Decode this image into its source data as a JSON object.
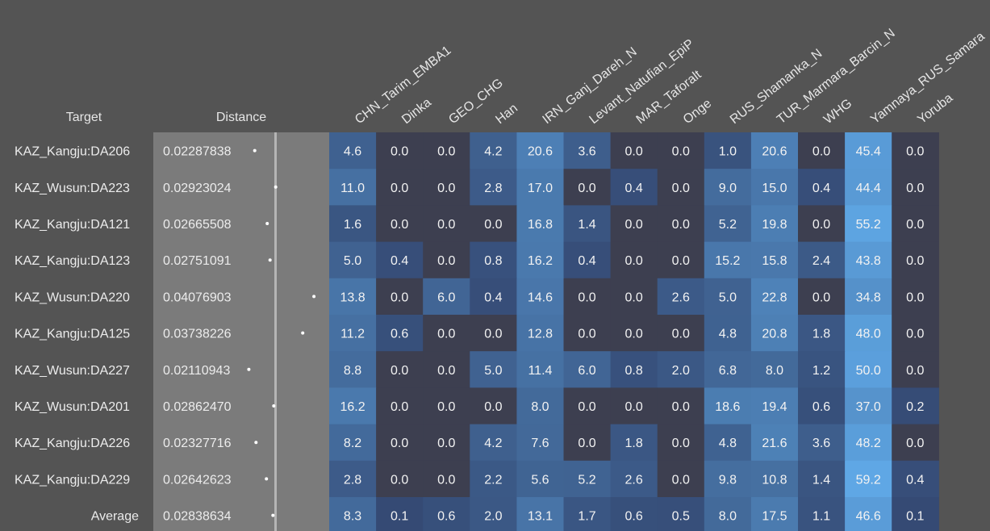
{
  "chart_data": {
    "type": "heatmap",
    "header": {
      "target": "Target",
      "distance": "Distance"
    },
    "columns": [
      "CHN_Tarim_EMBA1",
      "Dinka",
      "GEO_CHG",
      "Han",
      "IRN_Ganj_Dareh_N",
      "Levant_Natufian_EpiP",
      "MAR_Taforalt",
      "Onge",
      "RUS_Shamanka_N",
      "TUR_Marmara_Barcin_N",
      "WHG",
      "Yamnaya_RUS_Samara",
      "Yoruba"
    ],
    "rows": [
      {
        "target": "KAZ_Kangju:DA206",
        "distance": "0.02287838",
        "values": [
          "4.6",
          "0.0",
          "0.0",
          "4.2",
          "20.6",
          "3.6",
          "0.0",
          "0.0",
          "1.0",
          "20.6",
          "0.0",
          "45.4",
          "0.0"
        ]
      },
      {
        "target": "KAZ_Wusun:DA223",
        "distance": "0.02923024",
        "values": [
          "11.0",
          "0.0",
          "0.0",
          "2.8",
          "17.0",
          "0.0",
          "0.4",
          "0.0",
          "9.0",
          "15.0",
          "0.4",
          "44.4",
          "0.0"
        ]
      },
      {
        "target": "KAZ_Kangju:DA121",
        "distance": "0.02665508",
        "values": [
          "1.6",
          "0.0",
          "0.0",
          "0.0",
          "16.8",
          "1.4",
          "0.0",
          "0.0",
          "5.2",
          "19.8",
          "0.0",
          "55.2",
          "0.0"
        ]
      },
      {
        "target": "KAZ_Kangju:DA123",
        "distance": "0.02751091",
        "values": [
          "5.0",
          "0.4",
          "0.0",
          "0.8",
          "16.2",
          "0.4",
          "0.0",
          "0.0",
          "15.2",
          "15.8",
          "2.4",
          "43.8",
          "0.0"
        ]
      },
      {
        "target": "KAZ_Wusun:DA220",
        "distance": "0.04076903",
        "values": [
          "13.8",
          "0.0",
          "6.0",
          "0.4",
          "14.6",
          "0.0",
          "0.0",
          "2.6",
          "5.0",
          "22.8",
          "0.0",
          "34.8",
          "0.0"
        ]
      },
      {
        "target": "KAZ_Kangju:DA125",
        "distance": "0.03738226",
        "values": [
          "11.2",
          "0.6",
          "0.0",
          "0.0",
          "12.8",
          "0.0",
          "0.0",
          "0.0",
          "4.8",
          "20.8",
          "1.8",
          "48.0",
          "0.0"
        ]
      },
      {
        "target": "KAZ_Wusun:DA227",
        "distance": "0.02110943",
        "values": [
          "8.8",
          "0.0",
          "0.0",
          "5.0",
          "11.4",
          "6.0",
          "0.8",
          "2.0",
          "6.8",
          "8.0",
          "1.2",
          "50.0",
          "0.0"
        ]
      },
      {
        "target": "KAZ_Wusun:DA201",
        "distance": "0.02862470",
        "values": [
          "16.2",
          "0.0",
          "0.0",
          "0.0",
          "8.0",
          "0.0",
          "0.0",
          "0.0",
          "18.6",
          "19.4",
          "0.6",
          "37.0",
          "0.2"
        ]
      },
      {
        "target": "KAZ_Kangju:DA226",
        "distance": "0.02327716",
        "values": [
          "8.2",
          "0.0",
          "0.0",
          "4.2",
          "7.6",
          "0.0",
          "1.8",
          "0.0",
          "4.8",
          "21.6",
          "3.6",
          "48.2",
          "0.0"
        ]
      },
      {
        "target": "KAZ_Kangju:DA229",
        "distance": "0.02642623",
        "values": [
          "2.8",
          "0.0",
          "0.0",
          "2.2",
          "5.6",
          "5.2",
          "2.6",
          "0.0",
          "9.8",
          "10.8",
          "1.4",
          "59.2",
          "0.4"
        ]
      }
    ],
    "average": {
      "target": "Average",
      "distance": "0.02838634",
      "values": [
        "8.3",
        "0.1",
        "0.6",
        "2.0",
        "13.1",
        "1.7",
        "0.6",
        "0.5",
        "8.0",
        "17.5",
        "1.1",
        "46.6",
        "0.1"
      ]
    },
    "colors": {
      "background": "#545454",
      "distance_panel": "#7b7b7b",
      "zero_cell": "#3d3f50",
      "low_cell": "#33466f",
      "high_cell": "#5fa8e6"
    }
  }
}
